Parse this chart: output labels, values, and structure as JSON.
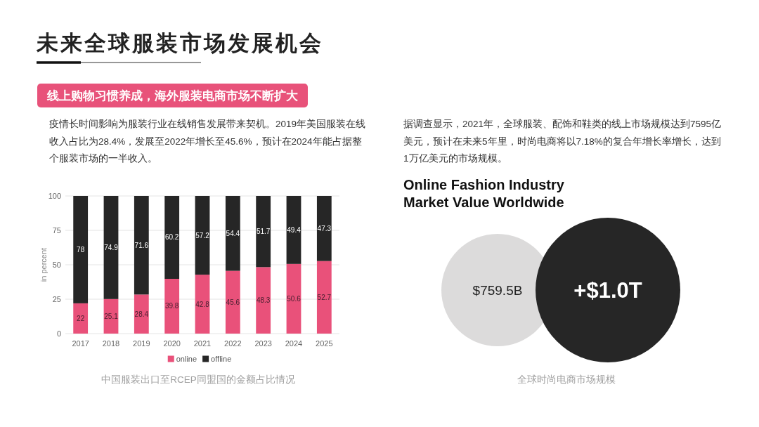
{
  "chart_data": [
    {
      "type": "other",
      "title": "未来全球服装市场发展机会",
      "subtitle": "线上购物习惯养成，海外服装电商市场不断扩大"
    },
    {
      "type": "bar",
      "stacked": true,
      "categories": [
        "2017",
        "2018",
        "2019",
        "2020",
        "2021",
        "2022",
        "2023",
        "2024",
        "2025"
      ],
      "series": [
        {
          "name": "online",
          "color": "#e9517a",
          "values": [
            22,
            25.1,
            28.4,
            39.8,
            42.8,
            45.6,
            48.3,
            50.6,
            52.7
          ]
        },
        {
          "name": "offline",
          "color": "#262626",
          "values": [
            78,
            74.9,
            71.6,
            60.2,
            57.2,
            54.4,
            51.7,
            49.4,
            47.3
          ]
        }
      ],
      "ylabel": "in percent",
      "ylim": [
        0,
        100
      ],
      "yticks": [
        0,
        25,
        50,
        75,
        100
      ],
      "grid": "y",
      "legend": "bottom",
      "data_labels": true,
      "annotations": [
        "疫情长时间影响为服装行业在线销售发展带来契机。2019年美国服装在线收入占比为28.4%，发展至2022年增长至45.6%，预计在2024年能占据整个服装市场的一半收入。",
        "中国服装出口至RCEP同盟国的金额占比情况"
      ]
    },
    {
      "type": "other",
      "title": "Online Fashion Industry Market Value Worldwide",
      "annotations": [
        "据调查显示，2021年，全球服装、配饰和鞋类的线上市场规模达到7595亿美元，预计在未来5年里，时尚电商将以7.18%的复合年增长率增长，达到1万亿美元的市场规模。",
        "$759.5B",
        "+$1.0T",
        "全球时尚电商市场规模"
      ]
    }
  ]
}
